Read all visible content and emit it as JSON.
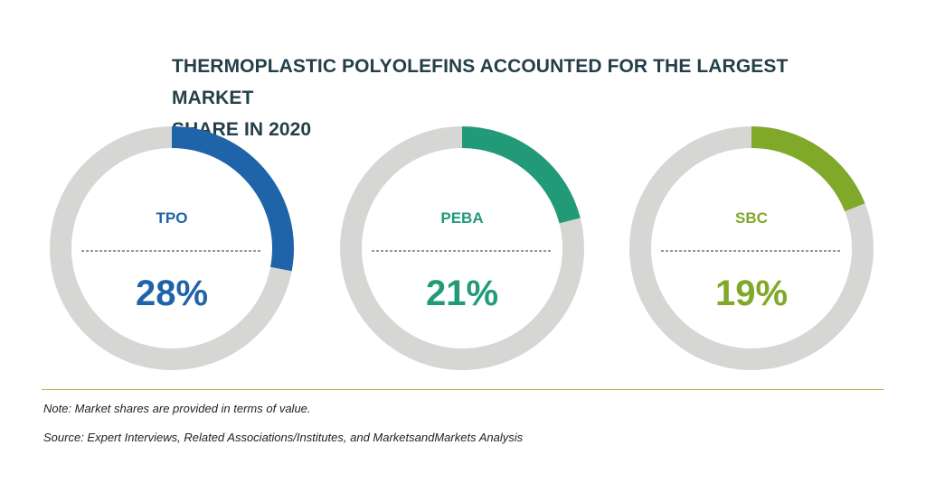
{
  "title_line1": "THERMOPLASTIC POLYOLEFINS ACCOUNTED FOR THE LARGEST MARKET",
  "title_line2": "SHARE IN 2020",
  "chart_data": {
    "type": "pie",
    "title": "THERMOPLASTIC POLYOLEFINS ACCOUNTED FOR THE LARGEST MARKET SHARE IN 2020",
    "track_color": "#d6d6d4",
    "charts": [
      {
        "label": "TPO",
        "value": 28,
        "display": "28%",
        "color": "#1f63a8"
      },
      {
        "label": "PEBA",
        "value": 21,
        "display": "21%",
        "color": "#229a78"
      },
      {
        "label": "SBC",
        "value": 19,
        "display": "19%",
        "color": "#80a829"
      }
    ]
  },
  "note": "Note: Market shares are provided in terms of value.",
  "source": "Source: Expert Interviews, Related Associations/Institutes, and MarketsandMarkets Analysis"
}
